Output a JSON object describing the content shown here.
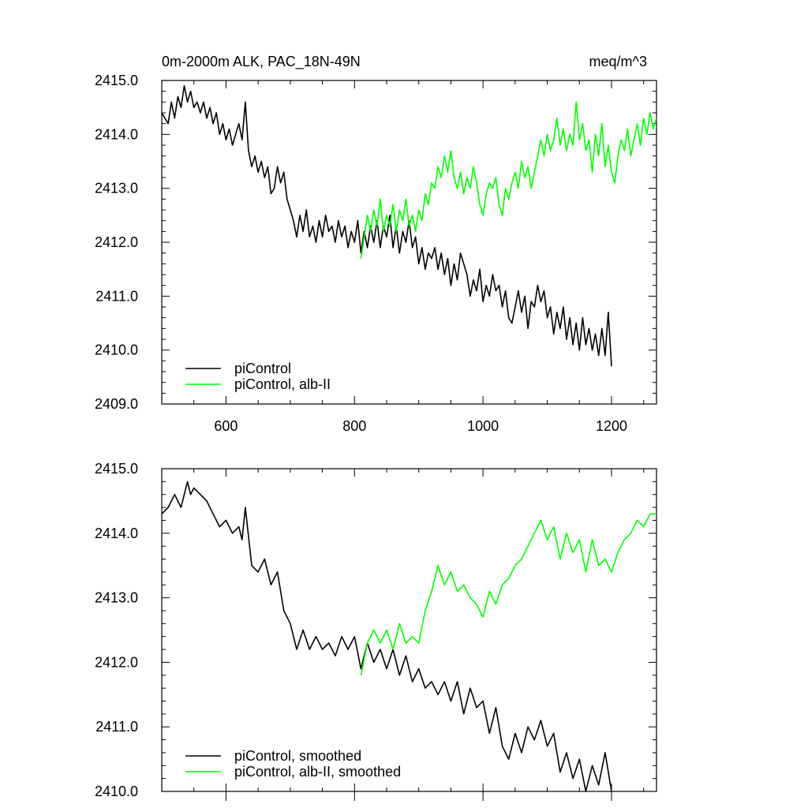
{
  "chart_data": [
    {
      "type": "line",
      "title": "0m-2000m ALK, PAC_18N-49N",
      "units": "meq/m^3",
      "xlim": [
        500,
        1270
      ],
      "ylim": [
        2409.0,
        2415.0
      ],
      "x_ticks": [
        600,
        800,
        1000,
        1200
      ],
      "x_tick_labels": [
        "600",
        "800",
        "1000",
        "1200"
      ],
      "y_ticks": [
        2409.0,
        2410.0,
        2411.0,
        2412.0,
        2413.0,
        2414.0,
        2415.0
      ],
      "y_tick_labels": [
        "2409.0",
        "2410.0",
        "2411.0",
        "2412.0",
        "2413.0",
        "2414.0",
        "2415.0"
      ],
      "legend_position": "bottom-left",
      "series": [
        {
          "name": "piControl",
          "color": "#000000",
          "x": [
            500,
            510,
            515,
            520,
            525,
            530,
            535,
            540,
            545,
            550,
            555,
            560,
            565,
            570,
            575,
            580,
            585,
            590,
            595,
            600,
            605,
            610,
            615,
            620,
            625,
            630,
            635,
            640,
            645,
            650,
            655,
            660,
            665,
            670,
            675,
            680,
            685,
            690,
            695,
            700,
            705,
            710,
            715,
            720,
            725,
            730,
            735,
            740,
            745,
            750,
            755,
            760,
            765,
            770,
            775,
            780,
            785,
            790,
            795,
            800,
            805,
            810,
            815,
            820,
            825,
            830,
            835,
            840,
            845,
            850,
            855,
            860,
            865,
            870,
            875,
            880,
            885,
            890,
            895,
            900,
            905,
            910,
            915,
            920,
            925,
            930,
            935,
            940,
            945,
            950,
            955,
            960,
            965,
            970,
            975,
            980,
            985,
            990,
            995,
            1000,
            1005,
            1010,
            1015,
            1020,
            1025,
            1030,
            1035,
            1040,
            1045,
            1050,
            1055,
            1060,
            1065,
            1070,
            1075,
            1080,
            1085,
            1090,
            1095,
            1100,
            1105,
            1110,
            1115,
            1120,
            1125,
            1130,
            1135,
            1140,
            1145,
            1150,
            1155,
            1160,
            1165,
            1170,
            1175,
            1180,
            1185,
            1190,
            1195,
            1200
          ],
          "y": [
            2414.4,
            2414.2,
            2414.6,
            2414.3,
            2414.7,
            2414.5,
            2414.9,
            2414.6,
            2414.8,
            2414.5,
            2414.6,
            2414.4,
            2414.6,
            2414.3,
            2414.5,
            2414.2,
            2414.4,
            2414.0,
            2414.2,
            2413.9,
            2414.1,
            2413.8,
            2414.0,
            2414.2,
            2413.9,
            2414.6,
            2413.7,
            2413.4,
            2413.6,
            2413.3,
            2413.5,
            2413.2,
            2413.4,
            2412.9,
            2413.0,
            2413.4,
            2413.1,
            2413.3,
            2412.8,
            2412.6,
            2412.4,
            2412.1,
            2412.5,
            2412.2,
            2412.6,
            2412.1,
            2412.3,
            2412.0,
            2412.4,
            2412.1,
            2412.5,
            2412.2,
            2412.3,
            2412.0,
            2412.4,
            2412.1,
            2412.3,
            2411.9,
            2412.2,
            2412.0,
            2412.4,
            2411.8,
            2412.2,
            2411.9,
            2412.3,
            2412.0,
            2412.4,
            2411.9,
            2412.3,
            2412.1,
            2412.5,
            2411.9,
            2412.3,
            2411.8,
            2412.2,
            2412.0,
            2412.4,
            2411.9,
            2412.1,
            2411.6,
            2411.9,
            2411.5,
            2411.8,
            2411.7,
            2411.9,
            2411.5,
            2411.8,
            2411.4,
            2411.7,
            2411.2,
            2411.6,
            2411.3,
            2411.8,
            2411.6,
            2411.4,
            2411.0,
            2411.3,
            2411.1,
            2411.5,
            2410.9,
            2411.2,
            2411.0,
            2411.4,
            2411.1,
            2411.2,
            2410.8,
            2411.1,
            2410.6,
            2410.5,
            2410.8,
            2411.1,
            2410.7,
            2411.0,
            2410.4,
            2410.9,
            2410.8,
            2411.2,
            2410.9,
            2411.1,
            2410.6,
            2410.8,
            2410.3,
            2410.7,
            2410.4,
            2410.8,
            2410.2,
            2410.6,
            2410.1,
            2410.5,
            2410.0,
            2410.6,
            2410.1,
            2410.4,
            2410.0,
            2410.3,
            2409.9,
            2410.4,
            2409.9,
            2410.7,
            2409.7
          ]
        },
        {
          "name": "piControl, alb-II",
          "color": "#00ff00",
          "x": [
            810,
            815,
            820,
            825,
            830,
            835,
            840,
            845,
            850,
            855,
            860,
            865,
            870,
            875,
            880,
            885,
            890,
            895,
            900,
            905,
            910,
            915,
            920,
            925,
            930,
            935,
            940,
            945,
            950,
            955,
            960,
            965,
            970,
            975,
            980,
            985,
            990,
            995,
            1000,
            1005,
            1010,
            1015,
            1020,
            1025,
            1030,
            1035,
            1040,
            1045,
            1050,
            1055,
            1060,
            1065,
            1070,
            1075,
            1080,
            1085,
            1090,
            1095,
            1100,
            1105,
            1110,
            1115,
            1120,
            1125,
            1130,
            1135,
            1140,
            1145,
            1150,
            1155,
            1160,
            1165,
            1170,
            1175,
            1180,
            1185,
            1190,
            1195,
            1200,
            1205,
            1210,
            1215,
            1220,
            1225,
            1230,
            1235,
            1240,
            1245,
            1250,
            1255,
            1260,
            1265,
            1270
          ],
          "y": [
            2411.7,
            2412.1,
            2412.5,
            2412.2,
            2412.6,
            2412.3,
            2412.8,
            2412.2,
            2412.5,
            2412.3,
            2412.7,
            2412.2,
            2412.6,
            2412.4,
            2412.8,
            2412.3,
            2412.5,
            2412.2,
            2412.6,
            2412.4,
            2412.9,
            2412.7,
            2413.1,
            2413.0,
            2413.4,
            2413.2,
            2413.6,
            2413.3,
            2413.7,
            2413.2,
            2413.0,
            2413.3,
            2412.9,
            2413.2,
            2413.0,
            2413.4,
            2413.1,
            2412.7,
            2412.5,
            2412.9,
            2413.1,
            2413.0,
            2413.2,
            2412.7,
            2412.5,
            2413.0,
            2412.8,
            2413.1,
            2413.3,
            2413.0,
            2413.5,
            2413.2,
            2413.4,
            2413.0,
            2413.3,
            2413.6,
            2413.9,
            2413.6,
            2414.0,
            2413.7,
            2413.9,
            2414.3,
            2413.8,
            2414.1,
            2413.7,
            2414.0,
            2413.8,
            2414.6,
            2413.9,
            2414.2,
            2413.7,
            2413.9,
            2413.3,
            2414.0,
            2413.6,
            2414.2,
            2413.4,
            2413.8,
            2413.3,
            2413.1,
            2413.6,
            2413.9,
            2413.7,
            2414.1,
            2413.6,
            2413.9,
            2414.2,
            2413.8,
            2414.3,
            2414.0,
            2414.4,
            2414.1,
            2414.3
          ]
        }
      ]
    },
    {
      "type": "line",
      "xlim": [
        500,
        1270
      ],
      "ylim": [
        2410.0,
        2415.0
      ],
      "x_ticks": [
        600,
        800,
        1000,
        1200
      ],
      "y_ticks": [
        2410.0,
        2411.0,
        2412.0,
        2413.0,
        2414.0,
        2415.0
      ],
      "y_tick_labels": [
        "2410.0",
        "2411.0",
        "2412.0",
        "2413.0",
        "2414.0",
        "2415.0"
      ],
      "legend_position": "bottom-left",
      "series": [
        {
          "name": "piControl, smoothed",
          "color": "#000000",
          "x": [
            500,
            510,
            520,
            530,
            540,
            545,
            550,
            560,
            570,
            580,
            590,
            600,
            610,
            620,
            625,
            630,
            640,
            650,
            660,
            670,
            680,
            690,
            700,
            710,
            720,
            730,
            740,
            750,
            760,
            770,
            780,
            790,
            800,
            810,
            820,
            830,
            840,
            850,
            860,
            870,
            880,
            890,
            900,
            910,
            920,
            930,
            940,
            950,
            960,
            970,
            980,
            990,
            1000,
            1010,
            1020,
            1030,
            1040,
            1050,
            1060,
            1070,
            1080,
            1090,
            1100,
            1110,
            1120,
            1130,
            1140,
            1150,
            1160,
            1170,
            1180,
            1190,
            1200
          ],
          "y": [
            2414.3,
            2414.4,
            2414.6,
            2414.4,
            2414.8,
            2414.6,
            2414.7,
            2414.6,
            2414.5,
            2414.3,
            2414.1,
            2414.2,
            2414.0,
            2414.1,
            2413.9,
            2414.4,
            2413.5,
            2413.4,
            2413.6,
            2413.2,
            2413.4,
            2412.8,
            2412.6,
            2412.2,
            2412.5,
            2412.2,
            2412.4,
            2412.2,
            2412.3,
            2412.1,
            2412.4,
            2412.2,
            2412.4,
            2411.9,
            2412.3,
            2412.0,
            2412.2,
            2411.9,
            2412.2,
            2411.8,
            2412.1,
            2411.7,
            2411.9,
            2411.6,
            2411.7,
            2411.5,
            2411.7,
            2411.4,
            2411.7,
            2411.2,
            2411.6,
            2411.3,
            2411.4,
            2410.9,
            2411.3,
            2410.7,
            2410.5,
            2410.9,
            2410.6,
            2411.0,
            2410.8,
            2411.1,
            2410.7,
            2410.9,
            2410.3,
            2410.6,
            2410.2,
            2410.5,
            2410.0,
            2410.4,
            2410.1,
            2410.6,
            2410.0
          ]
        },
        {
          "name": "piControl, alb-II, smoothed",
          "color": "#00ff00",
          "x": [
            810,
            820,
            830,
            840,
            850,
            860,
            870,
            880,
            890,
            900,
            910,
            920,
            930,
            940,
            950,
            960,
            970,
            980,
            990,
            1000,
            1010,
            1020,
            1030,
            1040,
            1050,
            1060,
            1070,
            1080,
            1090,
            1100,
            1110,
            1120,
            1130,
            1140,
            1150,
            1160,
            1170,
            1180,
            1190,
            1200,
            1210,
            1220,
            1230,
            1240,
            1250,
            1260,
            1270
          ],
          "y": [
            2411.8,
            2412.3,
            2412.5,
            2412.3,
            2412.5,
            2412.2,
            2412.6,
            2412.3,
            2412.4,
            2412.3,
            2412.8,
            2413.1,
            2413.5,
            2413.2,
            2413.4,
            2413.1,
            2413.2,
            2413.0,
            2412.9,
            2412.7,
            2413.1,
            2412.9,
            2413.2,
            2413.3,
            2413.5,
            2413.6,
            2413.8,
            2414.0,
            2414.2,
            2413.9,
            2414.1,
            2413.6,
            2414.0,
            2413.7,
            2413.9,
            2413.4,
            2413.9,
            2413.5,
            2413.6,
            2413.4,
            2413.7,
            2413.9,
            2414.0,
            2414.2,
            2414.1,
            2414.3,
            2414.3
          ]
        }
      ]
    }
  ]
}
